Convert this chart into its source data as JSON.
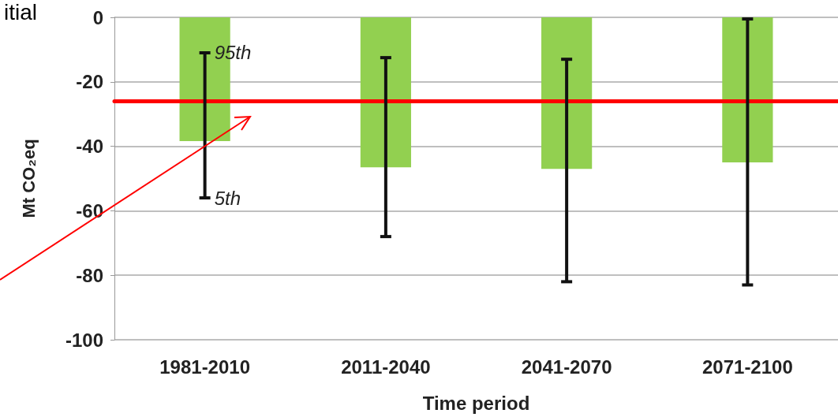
{
  "chart_data": {
    "type": "bar",
    "categories": [
      "1981-2010",
      "2011-2040",
      "2041-2070",
      "2071-2100"
    ],
    "values": [
      -38.4,
      -46.5,
      -47,
      -45
    ],
    "color": "#92d050",
    "errors": [
      [
        -56,
        -11
      ],
      [
        -68,
        -12.5
      ],
      [
        -82,
        -13
      ],
      [
        -83,
        -0.5
      ]
    ],
    "xlabel": "Time period",
    "ylabel": "Mt CO₂eq",
    "ylim": [
      -100,
      0
    ],
    "yticks": [
      -100,
      -80,
      -60,
      -40,
      -20,
      0
    ],
    "grid": "y",
    "ref_lines": [
      {
        "axis": "y",
        "value": -26,
        "color": "#ff0000"
      }
    ],
    "annotations": [
      "itial",
      {
        "text": "95th",
        "x": "1981-2010",
        "y": -11
      },
      {
        "text": "5th",
        "x": "1981-2010",
        "y": -56
      }
    ]
  }
}
